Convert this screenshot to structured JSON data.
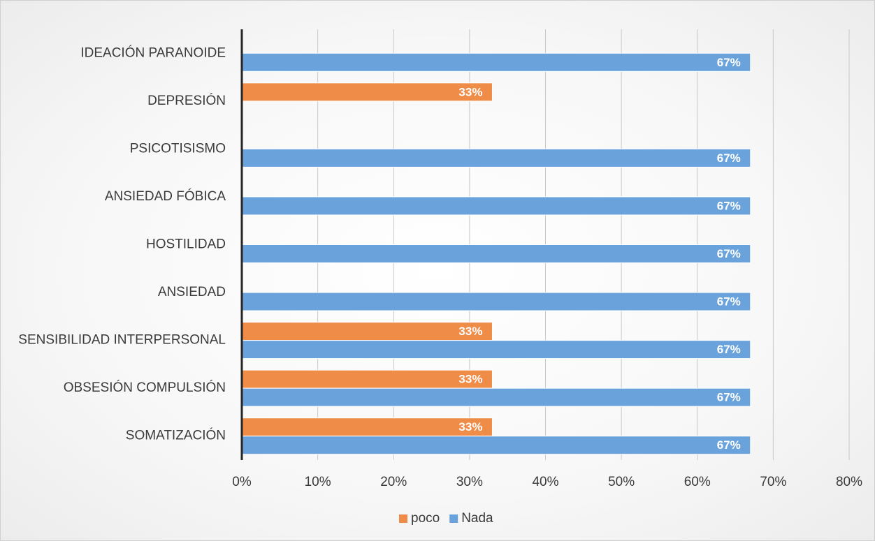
{
  "chart_data": {
    "type": "hbar",
    "categories": [
      "SOMATIZACIÓN",
      "OBSESIÓN COMPULSIÓN",
      "SENSIBILIDAD INTERPERSONAL",
      "ANSIEDAD",
      "HOSTILIDAD",
      "ANSIEDAD FÓBICA",
      "PSICOTISISMO",
      "DEPRESIÓN",
      "IDEACIÓN PARANOIDE"
    ],
    "series": [
      {
        "name": "poco",
        "color": "#ef8c48",
        "values": [
          33,
          33,
          33,
          null,
          null,
          null,
          null,
          33,
          null
        ],
        "value_labels": [
          "33%",
          "33%",
          "33%",
          null,
          null,
          null,
          null,
          "33%",
          null
        ]
      },
      {
        "name": "Nada",
        "color": "#6aa3dc",
        "values": [
          67,
          67,
          67,
          67,
          67,
          67,
          67,
          null,
          67
        ],
        "value_labels": [
          "67%",
          "67%",
          "67%",
          "67%",
          "67%",
          "67%",
          "67%",
          null,
          "67%"
        ]
      }
    ],
    "xlim": [
      0,
      80
    ],
    "xticks": [
      {
        "value": 0,
        "label": "0%"
      },
      {
        "value": 10,
        "label": "10%"
      },
      {
        "value": 20,
        "label": "20%"
      },
      {
        "value": 30,
        "label": "30%"
      },
      {
        "value": 40,
        "label": "40%"
      },
      {
        "value": 50,
        "label": "50%"
      },
      {
        "value": 60,
        "label": "60%"
      },
      {
        "value": 70,
        "label": "70%"
      },
      {
        "value": 80,
        "label": "80%"
      }
    ],
    "grid": true,
    "legend": "bottom"
  }
}
